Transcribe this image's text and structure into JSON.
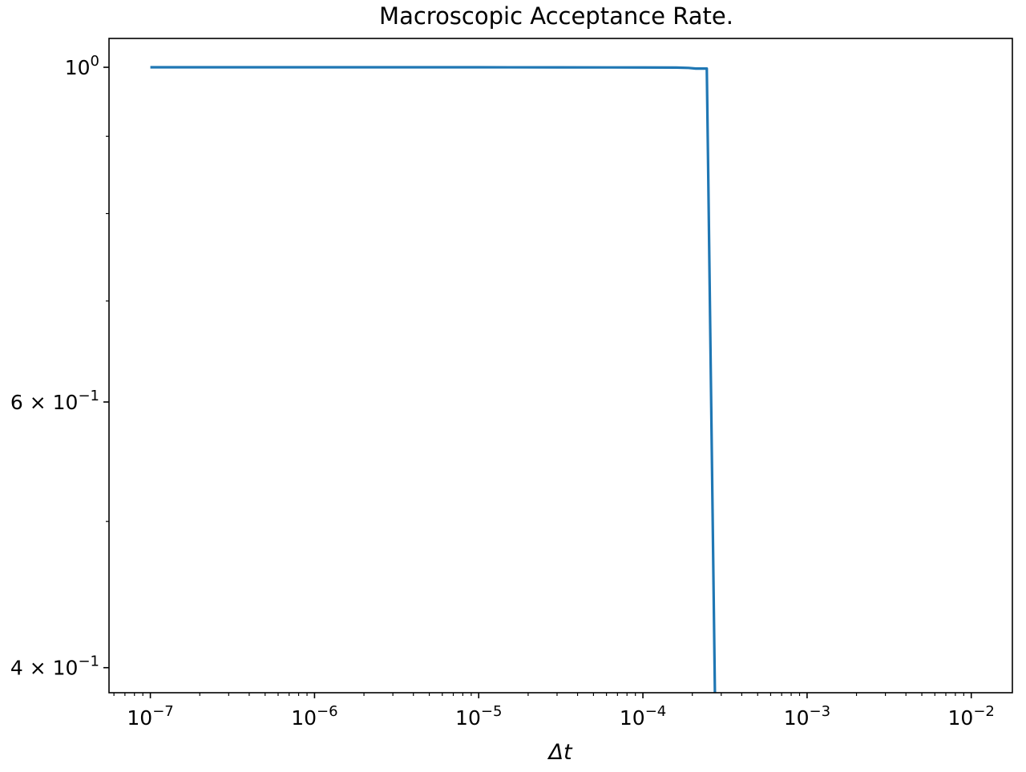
{
  "chart_data": {
    "type": "line",
    "title": "Macroscopic Acceptance Rate.",
    "xlabel": "Δt",
    "ylabel": "",
    "xscale": "log",
    "yscale": "log",
    "xlim": [
      5.6e-08,
      0.0178
    ],
    "ylim": [
      0.385,
      1.045
    ],
    "grid": false,
    "legend": "none",
    "line_color": "#1f77b4",
    "x_ticks": [
      {
        "value": 1e-07,
        "base": "10",
        "exp": "−7"
      },
      {
        "value": 1e-06,
        "base": "10",
        "exp": "−6"
      },
      {
        "value": 1e-05,
        "base": "10",
        "exp": "−5"
      },
      {
        "value": 0.0001,
        "base": "10",
        "exp": "−4"
      },
      {
        "value": 0.001,
        "base": "10",
        "exp": "−3"
      },
      {
        "value": 0.01,
        "base": "10",
        "exp": "−2"
      }
    ],
    "y_ticks": [
      {
        "value": 1.0,
        "base": "10",
        "exp": "0"
      },
      {
        "value": 0.6,
        "base": "6 × 10",
        "exp": "−1"
      },
      {
        "value": 0.4,
        "base": "4 × 10",
        "exp": "−1"
      }
    ],
    "y_minor_ticks": [
      0.9,
      0.8,
      0.7,
      0.5
    ],
    "series": [
      {
        "x": [
          1e-07,
          3e-07,
          1e-06,
          3e-06,
          1e-05,
          3e-05,
          6e-05,
          0.0001,
          0.00016,
          0.00019,
          0.00021,
          0.000245,
          0.00025,
          0.000275
        ],
        "y": [
          1.0,
          1.0,
          1.0,
          1.0,
          1.0,
          0.9999,
          0.9998,
          0.9997,
          0.9996,
          0.999,
          0.998,
          0.998,
          0.85,
          0.38
        ]
      }
    ]
  }
}
